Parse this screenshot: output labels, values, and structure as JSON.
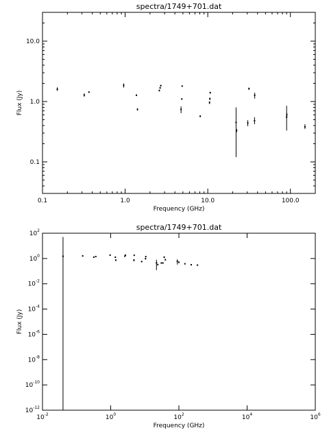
{
  "chart_data": [
    {
      "type": "scatter",
      "title": "spectra/1749+701.dat",
      "xlabel": "Frequency (GHz)",
      "ylabel": "Flux (Jy)",
      "x_scale": "log",
      "y_scale": "log",
      "xlim": [
        0.1,
        200
      ],
      "ylim": [
        0.03,
        30
      ],
      "grid": false,
      "x_ticks": [
        {
          "value": 0.1,
          "label": "0.1"
        },
        {
          "value": 1,
          "label": "1.0"
        },
        {
          "value": 10,
          "label": "10.0"
        },
        {
          "value": 100,
          "label": "100.0"
        }
      ],
      "y_ticks": [
        {
          "value": 0.1,
          "label": "0.1"
        },
        {
          "value": 1,
          "label": "1.0"
        },
        {
          "value": 10,
          "label": "10.0"
        }
      ],
      "points": [
        {
          "x": 0.151,
          "y": 1.6,
          "lo": 1.5,
          "hi": 1.72
        },
        {
          "x": 0.32,
          "y": 1.28,
          "lo": 1.2,
          "hi": 1.36
        },
        {
          "x": 0.365,
          "y": 1.43,
          "lo": 1.4,
          "hi": 1.47
        },
        {
          "x": 0.96,
          "y": 1.85,
          "lo": 1.7,
          "hi": 2.0
        },
        {
          "x": 1.37,
          "y": 1.27,
          "lo": 1.23,
          "hi": 1.31
        },
        {
          "x": 1.41,
          "y": 0.74,
          "lo": 0.71,
          "hi": 0.77
        },
        {
          "x": 2.59,
          "y": 1.52,
          "lo": 1.47,
          "hi": 1.57
        },
        {
          "x": 2.65,
          "y": 1.68,
          "lo": 1.63,
          "hi": 1.73
        },
        {
          "x": 2.7,
          "y": 1.83,
          "lo": 1.77,
          "hi": 1.89
        },
        {
          "x": 4.75,
          "y": 0.74,
          "lo": 0.64,
          "hi": 0.83
        },
        {
          "x": 4.85,
          "y": 1.1,
          "lo": 1.07,
          "hi": 1.13
        },
        {
          "x": 4.9,
          "y": 1.8,
          "lo": 1.75,
          "hi": 1.85
        },
        {
          "x": 8.1,
          "y": 0.57,
          "lo": 0.55,
          "hi": 0.59
        },
        {
          "x": 10.5,
          "y": 0.96,
          "lo": 0.91,
          "hi": 1.01
        },
        {
          "x": 10.6,
          "y": 1.11,
          "lo": 1.06,
          "hi": 1.16
        },
        {
          "x": 10.7,
          "y": 1.4,
          "lo": 1.35,
          "hi": 1.45
        },
        {
          "x": 22,
          "y": 0.45,
          "lo": 0.12,
          "hi": 0.8
        },
        {
          "x": 22.3,
          "y": 0.33,
          "lo": 0.31,
          "hi": 0.35
        },
        {
          "x": 30.5,
          "y": 0.44,
          "lo": 0.39,
          "hi": 0.49
        },
        {
          "x": 31.5,
          "y": 1.63,
          "lo": 1.56,
          "hi": 1.7
        },
        {
          "x": 36.8,
          "y": 0.48,
          "lo": 0.42,
          "hi": 0.55
        },
        {
          "x": 37,
          "y": 1.27,
          "lo": 1.12,
          "hi": 1.4
        },
        {
          "x": 90,
          "y": 0.55,
          "lo": 0.33,
          "hi": 0.85
        },
        {
          "x": 90.5,
          "y": 0.6,
          "lo": 0.55,
          "hi": 0.65
        },
        {
          "x": 150,
          "y": 0.38,
          "lo": 0.35,
          "hi": 0.42
        }
      ]
    },
    {
      "type": "scatter",
      "title": "spectra/1749+701.dat",
      "xlabel": "Frequency (GHz)",
      "ylabel": "Flux (Jy)",
      "x_scale": "log",
      "y_scale": "log",
      "xlim": [
        0.01,
        1000000
      ],
      "ylim": [
        1e-12,
        100
      ],
      "grid": false,
      "x_ticks": [
        {
          "value": 0.01,
          "base": "10",
          "exp": "-2"
        },
        {
          "value": 1,
          "base": "10",
          "exp": "0"
        },
        {
          "value": 100,
          "base": "10",
          "exp": "2"
        },
        {
          "value": 10000,
          "base": "10",
          "exp": "4"
        },
        {
          "value": 1000000,
          "base": "10",
          "exp": "6"
        }
      ],
      "y_ticks": [
        {
          "value": 1e-12,
          "base": "10",
          "exp": "-12"
        },
        {
          "value": 1e-10,
          "base": "10",
          "exp": "-10"
        },
        {
          "value": 1e-08,
          "base": "10",
          "exp": "-8"
        },
        {
          "value": 1e-06,
          "base": "10",
          "exp": "-6"
        },
        {
          "value": 0.0001,
          "base": "10",
          "exp": "-4"
        },
        {
          "value": 0.01,
          "base": "10",
          "exp": "-2"
        },
        {
          "value": 1,
          "base": "10",
          "exp": "0"
        },
        {
          "value": 100,
          "base": "10",
          "exp": "2"
        }
      ],
      "points": [
        {
          "x": 0.04,
          "y": 1.5,
          "lo": 1e-12,
          "hi": 50
        },
        {
          "x": 0.151,
          "y": 1.6,
          "lo": 1.4,
          "hi": 1.8
        },
        {
          "x": 0.32,
          "y": 1.28,
          "lo": 1.15,
          "hi": 1.4
        },
        {
          "x": 0.365,
          "y": 1.43,
          "lo": 1.3,
          "hi": 1.55
        },
        {
          "x": 0.96,
          "y": 1.85,
          "lo": 1.6,
          "hi": 2.1
        },
        {
          "x": 1.37,
          "y": 1.27,
          "lo": 1.1,
          "hi": 1.45
        },
        {
          "x": 1.41,
          "y": 0.74,
          "lo": 0.64,
          "hi": 0.85
        },
        {
          "x": 2.6,
          "y": 1.52,
          "lo": 1.35,
          "hi": 1.7
        },
        {
          "x": 2.7,
          "y": 1.83,
          "lo": 1.6,
          "hi": 2.05
        },
        {
          "x": 4.8,
          "y": 0.74,
          "lo": 0.6,
          "hi": 0.9
        },
        {
          "x": 4.9,
          "y": 1.8,
          "lo": 1.6,
          "hi": 2.0
        },
        {
          "x": 8.1,
          "y": 0.57,
          "lo": 0.5,
          "hi": 0.65
        },
        {
          "x": 10.5,
          "y": 0.96,
          "lo": 0.85,
          "hi": 1.1
        },
        {
          "x": 10.7,
          "y": 1.4,
          "lo": 1.25,
          "hi": 1.55
        },
        {
          "x": 22,
          "y": 0.45,
          "lo": 0.12,
          "hi": 0.8
        },
        {
          "x": 24,
          "y": 0.33,
          "lo": 0.3,
          "hi": 0.36
        },
        {
          "x": 30.5,
          "y": 0.44,
          "lo": 0.39,
          "hi": 0.49
        },
        {
          "x": 34,
          "y": 0.44,
          "lo": 0.39,
          "hi": 0.49
        },
        {
          "x": 37,
          "y": 1.27,
          "lo": 1.1,
          "hi": 1.45
        },
        {
          "x": 40,
          "y": 0.8,
          "lo": 0.7,
          "hi": 0.9
        },
        {
          "x": 90,
          "y": 0.6,
          "lo": 0.33,
          "hi": 0.85
        },
        {
          "x": 100,
          "y": 0.5,
          "lo": 0.45,
          "hi": 0.55
        },
        {
          "x": 150,
          "y": 0.38,
          "lo": 0.34,
          "hi": 0.42
        },
        {
          "x": 230,
          "y": 0.32,
          "lo": 0.29,
          "hi": 0.35
        },
        {
          "x": 350,
          "y": 0.3,
          "lo": 0.27,
          "hi": 0.33
        }
      ]
    }
  ]
}
